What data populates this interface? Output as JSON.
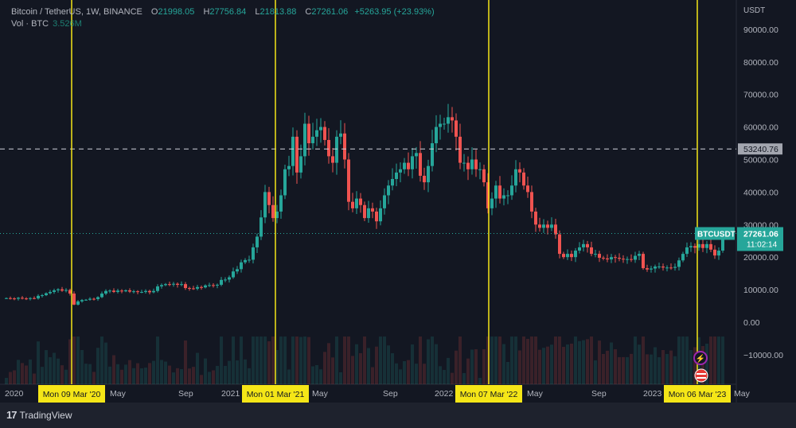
{
  "legend": {
    "symbol": "Bitcoin / TetherUS, 1W, BINANCE",
    "open_label": "O",
    "open": "21998.05",
    "high_label": "H",
    "high": "27756.84",
    "low_label": "L",
    "low": "21813.88",
    "close_label": "C",
    "close": "27261.06",
    "change": "+5263.95 (+23.93%)",
    "volume_label": "Vol · BTC",
    "volume": "3.526M"
  },
  "price_axis": {
    "currency": "USDT",
    "ticks": [
      "90000.00",
      "80000.00",
      "70000.00",
      "60000.00",
      "50000.00",
      "40000.00",
      "30000.00",
      "20000.00",
      "10000.00",
      "0.00",
      "−10000.00"
    ],
    "horizontal_line_label": "53240.76",
    "current_symbol": "BTCUSDT",
    "current_price": "27261.06",
    "countdown": "11:02:14"
  },
  "time_axis": {
    "ticks": [
      "2020",
      "May",
      "Sep",
      "2021",
      "May",
      "Sep",
      "2022",
      "May",
      "Sep",
      "2023",
      "May"
    ],
    "markers": [
      "Mon 09 Mar '20",
      "Mon 01 Mar '21",
      "Mon 07 Mar '22",
      "Mon 06 Mar '23"
    ]
  },
  "colors": {
    "up": "#26a69a",
    "down": "#ef5350",
    "marker": "#f5e617",
    "background": "#131722"
  },
  "footer": {
    "brand": "TradingView",
    "logo": "17"
  },
  "chart_data": {
    "type": "candlestick",
    "interval": "1W",
    "ylim": [
      -18000,
      92000
    ],
    "horizontal_line": 53240.76,
    "vertical_markers": [
      "2020-03-09",
      "2021-03-01",
      "2022-03-07",
      "2023-03-06"
    ],
    "closes": [
      7400,
      7300,
      7200,
      7500,
      7300,
      7200,
      7400,
      7300,
      8100,
      8300,
      8900,
      9300,
      9800,
      10100,
      9700,
      9900,
      8800,
      5400,
      6400,
      6800,
      6900,
      7200,
      7100,
      7700,
      8800,
      9600,
      9700,
      9300,
      9700,
      9500,
      9800,
      9400,
      9500,
      9300,
      9300,
      9600,
      9200,
      9600,
      11000,
      11400,
      11700,
      11600,
      11800,
      11500,
      11700,
      10500,
      10400,
      10300,
      10800,
      10700,
      11300,
      11400,
      11300,
      11500,
      13000,
      13100,
      13800,
      15600,
      16300,
      18400,
      19100,
      19200,
      23000,
      26300,
      32200,
      40000,
      36000,
      32000,
      34000,
      39000,
      47000,
      48000,
      57000,
      46000,
      51000,
      61000,
      55000,
      57000,
      59000,
      60000,
      56000,
      51000,
      49000,
      57000,
      58000,
      50000,
      37000,
      35000,
      38000,
      36000,
      32000,
      35000,
      34000,
      31000,
      35000,
      39000,
      42000,
      44000,
      46000,
      47000,
      49000,
      47000,
      51000,
      52000,
      45000,
      43000,
      48000,
      55000,
      60000,
      61000,
      61000,
      63000,
      62000,
      57000,
      49000,
      49000,
      47000,
      50000,
      47000,
      47000,
      43000,
      35000,
      38000,
      42000,
      38000,
      39000,
      39000,
      42000,
      47000,
      46000,
      42000,
      40000,
      34000,
      30000,
      29000,
      30000,
      29000,
      30000,
      27000,
      21000,
      20000,
      21000,
      20000,
      22000,
      23000,
      24000,
      23000,
      21000,
      21000,
      19800,
      19600,
      19300,
      20000,
      19800,
      19500,
      19300,
      19400,
      19200,
      20400,
      21000,
      16600,
      16200,
      16500,
      17100,
      17100,
      16800,
      16800,
      16700,
      17000,
      19000,
      21000,
      23000,
      23400,
      22900,
      24000,
      22800,
      24000,
      22300,
      20500,
      22000,
      27261.06
    ]
  }
}
